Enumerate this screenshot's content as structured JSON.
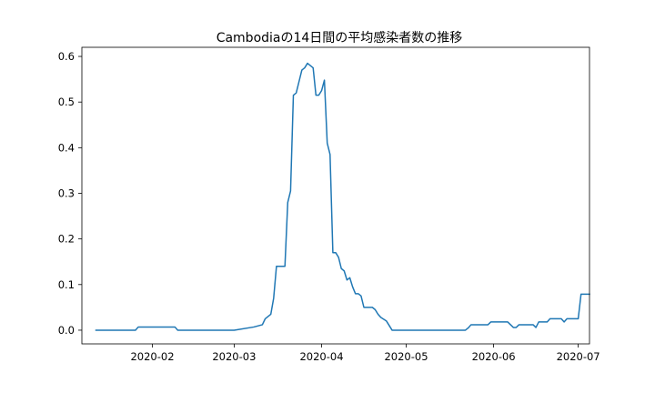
{
  "chart_data": {
    "type": "line",
    "title": "Cambodiaの14日間の平均感染者数の推移",
    "xlabel": "",
    "ylabel": "",
    "xlim": [
      "2020-01-07",
      "2020-07-05"
    ],
    "ylim": [
      -0.03,
      0.62
    ],
    "x_ticks": [
      "2020-02",
      "2020-03",
      "2020-04",
      "2020-05",
      "2020-06",
      "2020-07"
    ],
    "y_ticks": [
      "0.0",
      "0.1",
      "0.2",
      "0.3",
      "0.4",
      "0.5",
      "0.6"
    ],
    "y_tick_values": [
      0.0,
      0.1,
      0.2,
      0.3,
      0.4,
      0.5,
      0.6
    ],
    "grid": false,
    "series_color": "#1f77b4",
    "series": [
      {
        "points": [
          [
            "2020-01-12",
            0.0
          ],
          [
            "2020-01-26",
            0.0
          ],
          [
            "2020-01-27",
            0.007
          ],
          [
            "2020-02-09",
            0.007
          ],
          [
            "2020-02-10",
            0.0
          ],
          [
            "2020-03-01",
            0.0
          ],
          [
            "2020-03-08",
            0.007
          ],
          [
            "2020-03-11",
            0.012
          ],
          [
            "2020-03-12",
            0.025
          ],
          [
            "2020-03-14",
            0.035
          ],
          [
            "2020-03-15",
            0.07
          ],
          [
            "2020-03-16",
            0.14
          ],
          [
            "2020-03-19",
            0.14
          ],
          [
            "2020-03-20",
            0.28
          ],
          [
            "2020-03-21",
            0.305
          ],
          [
            "2020-03-22",
            0.515
          ],
          [
            "2020-03-23",
            0.52
          ],
          [
            "2020-03-24",
            0.545
          ],
          [
            "2020-03-25",
            0.57
          ],
          [
            "2020-03-26",
            0.575
          ],
          [
            "2020-03-27",
            0.585
          ],
          [
            "2020-03-28",
            0.58
          ],
          [
            "2020-03-29",
            0.575
          ],
          [
            "2020-03-30",
            0.515
          ],
          [
            "2020-03-31",
            0.515
          ],
          [
            "2020-04-01",
            0.525
          ],
          [
            "2020-04-02",
            0.548
          ],
          [
            "2020-04-03",
            0.41
          ],
          [
            "2020-04-04",
            0.385
          ],
          [
            "2020-04-05",
            0.17
          ],
          [
            "2020-04-06",
            0.17
          ],
          [
            "2020-04-07",
            0.16
          ],
          [
            "2020-04-08",
            0.135
          ],
          [
            "2020-04-09",
            0.13
          ],
          [
            "2020-04-10",
            0.11
          ],
          [
            "2020-04-11",
            0.115
          ],
          [
            "2020-04-12",
            0.095
          ],
          [
            "2020-04-13",
            0.08
          ],
          [
            "2020-04-14",
            0.08
          ],
          [
            "2020-04-15",
            0.075
          ],
          [
            "2020-04-16",
            0.05
          ],
          [
            "2020-04-19",
            0.05
          ],
          [
            "2020-04-20",
            0.045
          ],
          [
            "2020-04-21",
            0.035
          ],
          [
            "2020-04-22",
            0.028
          ],
          [
            "2020-04-24",
            0.02
          ],
          [
            "2020-04-25",
            0.01
          ],
          [
            "2020-04-26",
            0.0
          ],
          [
            "2020-05-22",
            0.0
          ],
          [
            "2020-05-23",
            0.005
          ],
          [
            "2020-05-24",
            0.012
          ],
          [
            "2020-05-30",
            0.012
          ],
          [
            "2020-05-31",
            0.018
          ],
          [
            "2020-06-06",
            0.018
          ],
          [
            "2020-06-07",
            0.012
          ],
          [
            "2020-06-08",
            0.006
          ],
          [
            "2020-06-09",
            0.006
          ],
          [
            "2020-06-10",
            0.012
          ],
          [
            "2020-06-15",
            0.012
          ],
          [
            "2020-06-16",
            0.006
          ],
          [
            "2020-06-17",
            0.018
          ],
          [
            "2020-06-20",
            0.018
          ],
          [
            "2020-06-21",
            0.025
          ],
          [
            "2020-06-25",
            0.025
          ],
          [
            "2020-06-26",
            0.018
          ],
          [
            "2020-06-27",
            0.025
          ],
          [
            "2020-07-01",
            0.025
          ],
          [
            "2020-07-02",
            0.079
          ],
          [
            "2020-07-05",
            0.079
          ]
        ]
      }
    ]
  }
}
